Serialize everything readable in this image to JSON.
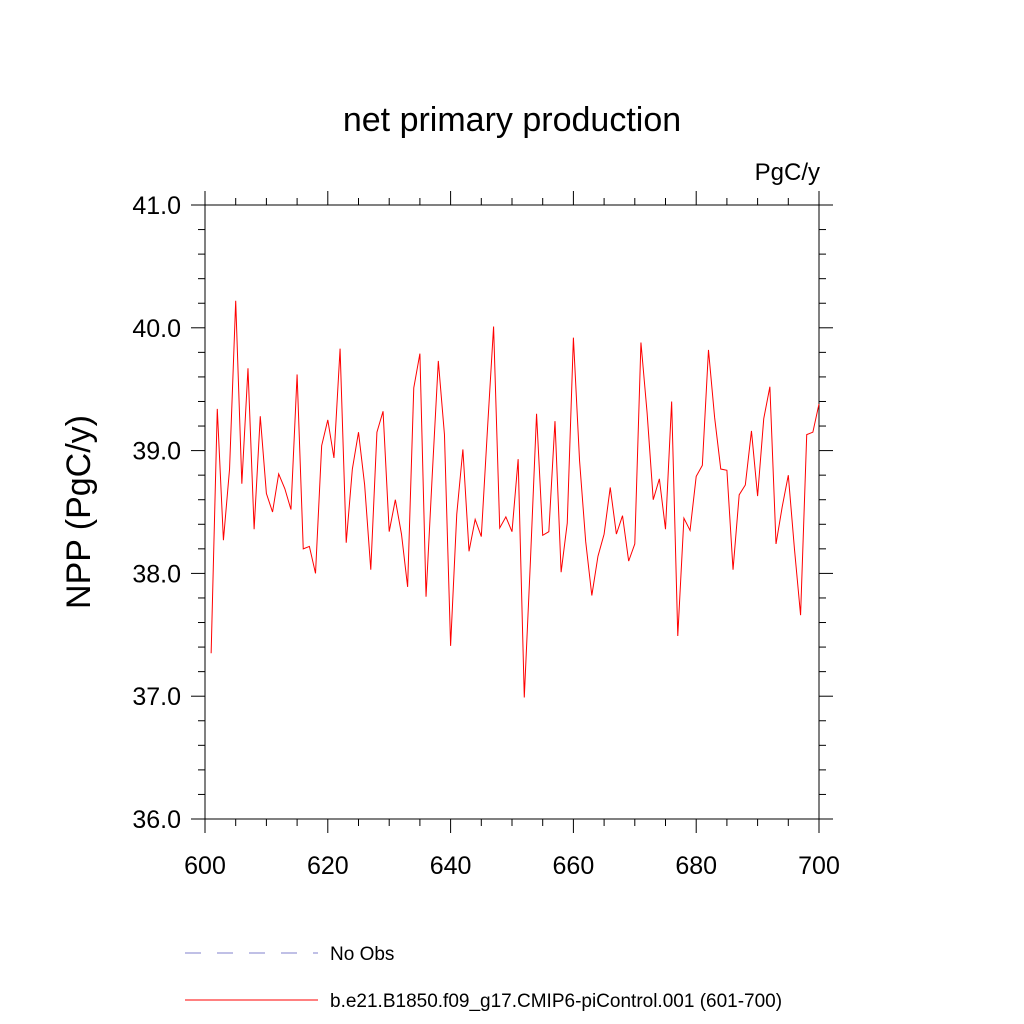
{
  "chart_data": {
    "type": "line",
    "title": "net primary production",
    "units_label": "PgC/y",
    "ylabel": "NPP  (PgC/y)",
    "xlabel": "",
    "xlim": [
      600,
      700
    ],
    "ylim": [
      36.0,
      41.0
    ],
    "x_ticks": [
      600,
      620,
      640,
      660,
      680,
      700
    ],
    "x_tick_labels": [
      "600",
      "620",
      "640",
      "660",
      "680",
      "700"
    ],
    "y_ticks": [
      36.0,
      37.0,
      38.0,
      39.0,
      40.0,
      41.0
    ],
    "y_tick_labels": [
      "36.0",
      "37.0",
      "38.0",
      "39.0",
      "40.0",
      "41.0"
    ],
    "grid": false,
    "legend": [
      {
        "name": "No Obs",
        "color": "#8080cc",
        "style": "dashed"
      },
      {
        "name": "b.e21.B1850.f09_g17.CMIP6-piControl.001 (601-700)",
        "color": "#ff0000",
        "style": "solid"
      }
    ],
    "series": [
      {
        "name": "b.e21.B1850.f09_g17.CMIP6-piControl.001 (601-700)",
        "color": "#ff0000",
        "x": [
          601,
          602,
          603,
          604,
          605,
          606,
          607,
          608,
          609,
          610,
          611,
          612,
          613,
          614,
          615,
          616,
          617,
          618,
          619,
          620,
          621,
          622,
          623,
          624,
          625,
          626,
          627,
          628,
          629,
          630,
          631,
          632,
          633,
          634,
          635,
          636,
          637,
          638,
          639,
          640,
          641,
          642,
          643,
          644,
          645,
          646,
          647,
          648,
          649,
          650,
          651,
          652,
          653,
          654,
          655,
          656,
          657,
          658,
          659,
          660,
          661,
          662,
          663,
          664,
          665,
          666,
          667,
          668,
          669,
          670,
          671,
          672,
          673,
          674,
          675,
          676,
          677,
          678,
          679,
          680,
          681,
          682,
          683,
          684,
          685,
          686,
          687,
          688,
          689,
          690,
          691,
          692,
          693,
          694,
          695,
          696,
          697,
          698,
          699,
          700
        ],
        "y": [
          37.35,
          39.34,
          38.27,
          38.85,
          40.22,
          38.73,
          39.67,
          38.36,
          39.28,
          38.65,
          38.5,
          38.81,
          38.69,
          38.52,
          39.62,
          38.2,
          38.22,
          38.0,
          39.04,
          39.25,
          38.94,
          39.83,
          38.25,
          38.85,
          39.15,
          38.72,
          38.03,
          39.15,
          39.32,
          38.34,
          38.6,
          38.32,
          37.89,
          39.51,
          39.79,
          37.81,
          38.79,
          39.73,
          39.13,
          37.41,
          38.48,
          39.01,
          38.18,
          38.44,
          38.3,
          39.17,
          40.01,
          38.37,
          38.46,
          38.34,
          38.93,
          36.99,
          38.1,
          39.3,
          38.31,
          38.34,
          39.24,
          38.01,
          38.41,
          39.92,
          38.92,
          38.26,
          37.82,
          38.14,
          38.32,
          38.7,
          38.32,
          38.47,
          38.1,
          38.24,
          39.88,
          39.31,
          38.6,
          38.77,
          38.36,
          39.4,
          37.49,
          38.45,
          38.35,
          38.79,
          38.88,
          39.82,
          39.27,
          38.85,
          38.84,
          38.03,
          38.64,
          38.72,
          39.16,
          38.63,
          39.26,
          39.52,
          38.24,
          38.54,
          38.8,
          38.2,
          37.66,
          39.13,
          39.15,
          39.38
        ]
      }
    ]
  }
}
